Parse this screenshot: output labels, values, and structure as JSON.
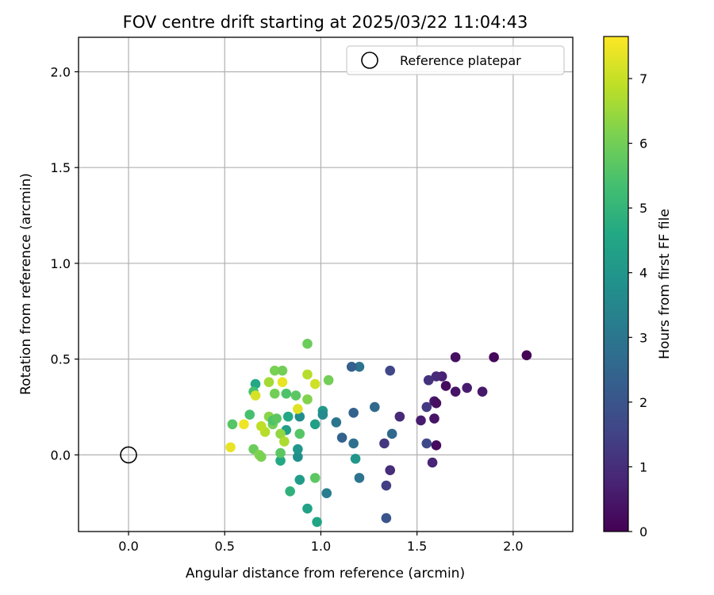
{
  "chart_data": {
    "type": "scatter",
    "title": "FOV centre drift starting at 2025/03/22 11:04:43",
    "xlabel": "Angular distance from reference (arcmin)",
    "ylabel": "Rotation from reference (arcmin)",
    "xlim": [
      -0.26,
      2.31
    ],
    "ylim": [
      -0.4,
      2.18
    ],
    "xticks": [
      0.0,
      0.5,
      1.0,
      1.5,
      2.0
    ],
    "xtick_labels": [
      "0.0",
      "0.5",
      "1.0",
      "1.5",
      "2.0"
    ],
    "yticks": [
      0.0,
      0.5,
      1.0,
      1.5,
      2.0
    ],
    "ytick_labels": [
      "0.0",
      "0.5",
      "1.0",
      "1.5",
      "2.0"
    ],
    "grid": true,
    "legend": {
      "label": "Reference platepar",
      "placement": "top-right"
    },
    "reference_point": {
      "x": 0.0,
      "y": 0.0
    },
    "colorbar": {
      "label": "Hours from first FF file",
      "colormap": "viridis",
      "range": [
        0,
        7.65
      ],
      "ticks": [
        0,
        1,
        2,
        3,
        4,
        5,
        6,
        7
      ],
      "tick_labels": [
        "0",
        "1",
        "2",
        "3",
        "4",
        "5",
        "6",
        "7"
      ]
    },
    "points": [
      {
        "x": 2.07,
        "y": 0.52,
        "c": 0.05
      },
      {
        "x": 1.9,
        "y": 0.51,
        "c": 0.15
      },
      {
        "x": 1.7,
        "y": 0.51,
        "c": 0.3
      },
      {
        "x": 1.84,
        "y": 0.33,
        "c": 0.5
      },
      {
        "x": 1.76,
        "y": 0.35,
        "c": 0.6
      },
      {
        "x": 1.7,
        "y": 0.33,
        "c": 0.4
      },
      {
        "x": 1.65,
        "y": 0.36,
        "c": 0.2
      },
      {
        "x": 1.63,
        "y": 0.41,
        "c": 0.7
      },
      {
        "x": 1.6,
        "y": 0.41,
        "c": 0.9
      },
      {
        "x": 1.56,
        "y": 0.39,
        "c": 1.1
      },
      {
        "x": 1.59,
        "y": 0.28,
        "c": 0.5
      },
      {
        "x": 1.6,
        "y": 0.27,
        "c": 0.3
      },
      {
        "x": 1.55,
        "y": 0.25,
        "c": 1.3
      },
      {
        "x": 1.52,
        "y": 0.18,
        "c": 0.6
      },
      {
        "x": 1.59,
        "y": 0.19,
        "c": 0.4
      },
      {
        "x": 1.55,
        "y": 0.06,
        "c": 1.7
      },
      {
        "x": 1.6,
        "y": 0.05,
        "c": 0.2
      },
      {
        "x": 1.58,
        "y": -0.04,
        "c": 0.8
      },
      {
        "x": 1.41,
        "y": 0.2,
        "c": 0.9
      },
      {
        "x": 1.36,
        "y": -0.08,
        "c": 1.0
      },
      {
        "x": 1.34,
        "y": -0.16,
        "c": 1.4
      },
      {
        "x": 1.33,
        "y": 0.06,
        "c": 1.2
      },
      {
        "x": 1.36,
        "y": 0.44,
        "c": 1.6
      },
      {
        "x": 1.37,
        "y": 0.11,
        "c": 2.6
      },
      {
        "x": 1.34,
        "y": -0.33,
        "c": 2.0
      },
      {
        "x": 1.28,
        "y": 0.25,
        "c": 2.6
      },
      {
        "x": 1.2,
        "y": 0.46,
        "c": 2.9
      },
      {
        "x": 1.16,
        "y": 0.46,
        "c": 2.3
      },
      {
        "x": 1.17,
        "y": 0.22,
        "c": 2.4
      },
      {
        "x": 1.17,
        "y": 0.06,
        "c": 2.8
      },
      {
        "x": 1.11,
        "y": 0.09,
        "c": 2.4
      },
      {
        "x": 1.2,
        "y": -0.12,
        "c": 2.9
      },
      {
        "x": 1.18,
        "y": -0.02,
        "c": 4.0
      },
      {
        "x": 1.08,
        "y": 0.17,
        "c": 3.0
      },
      {
        "x": 1.03,
        "y": -0.2,
        "c": 3.2
      },
      {
        "x": 1.01,
        "y": 0.23,
        "c": 4.1
      },
      {
        "x": 1.01,
        "y": 0.21,
        "c": 3.6
      },
      {
        "x": 0.97,
        "y": 0.16,
        "c": 4.3
      },
      {
        "x": 0.89,
        "y": 0.2,
        "c": 3.7
      },
      {
        "x": 0.89,
        "y": -0.13,
        "c": 4.2
      },
      {
        "x": 0.88,
        "y": -0.01,
        "c": 3.8
      },
      {
        "x": 0.88,
        "y": 0.03,
        "c": 4.0
      },
      {
        "x": 0.93,
        "y": -0.28,
        "c": 4.4
      },
      {
        "x": 0.98,
        "y": -0.35,
        "c": 4.5
      },
      {
        "x": 0.84,
        "y": -0.19,
        "c": 4.9
      },
      {
        "x": 0.83,
        "y": 0.2,
        "c": 4.6
      },
      {
        "x": 0.82,
        "y": 0.13,
        "c": 4.3
      },
      {
        "x": 0.79,
        "y": -0.03,
        "c": 4.6
      },
      {
        "x": 0.79,
        "y": 0.01,
        "c": 5.7
      },
      {
        "x": 0.97,
        "y": -0.12,
        "c": 5.7
      },
      {
        "x": 0.89,
        "y": 0.11,
        "c": 5.6
      },
      {
        "x": 0.93,
        "y": 0.58,
        "c": 5.9
      },
      {
        "x": 1.04,
        "y": 0.39,
        "c": 6.0
      },
      {
        "x": 0.93,
        "y": 0.29,
        "c": 6.2
      },
      {
        "x": 0.87,
        "y": 0.31,
        "c": 5.7
      },
      {
        "x": 0.82,
        "y": 0.32,
        "c": 5.5
      },
      {
        "x": 0.76,
        "y": 0.32,
        "c": 6.0
      },
      {
        "x": 0.76,
        "y": 0.44,
        "c": 6.1
      },
      {
        "x": 0.8,
        "y": 0.44,
        "c": 6.0
      },
      {
        "x": 0.66,
        "y": 0.37,
        "c": 4.6
      },
      {
        "x": 0.65,
        "y": 0.33,
        "c": 5.4
      },
      {
        "x": 0.63,
        "y": 0.21,
        "c": 5.4
      },
      {
        "x": 0.54,
        "y": 0.16,
        "c": 5.6
      },
      {
        "x": 0.65,
        "y": 0.03,
        "c": 5.9
      },
      {
        "x": 0.68,
        "y": 0.0,
        "c": 6.2
      },
      {
        "x": 0.69,
        "y": -0.01,
        "c": 6.1
      },
      {
        "x": 0.73,
        "y": 0.2,
        "c": 6.3
      },
      {
        "x": 0.75,
        "y": 0.16,
        "c": 6.0
      },
      {
        "x": 0.75,
        "y": 0.18,
        "c": 5.5
      },
      {
        "x": 0.77,
        "y": 0.19,
        "c": 5.7
      },
      {
        "x": 0.79,
        "y": 0.11,
        "c": 6.4
      },
      {
        "x": 0.81,
        "y": 0.07,
        "c": 6.7
      },
      {
        "x": 0.71,
        "y": 0.12,
        "c": 6.8
      },
      {
        "x": 0.69,
        "y": 0.15,
        "c": 6.9
      },
      {
        "x": 0.73,
        "y": 0.38,
        "c": 6.6
      },
      {
        "x": 0.8,
        "y": 0.38,
        "c": 7.4
      },
      {
        "x": 0.93,
        "y": 0.42,
        "c": 6.8
      },
      {
        "x": 0.97,
        "y": 0.37,
        "c": 7.1
      },
      {
        "x": 0.88,
        "y": 0.24,
        "c": 7.3
      },
      {
        "x": 0.66,
        "y": 0.31,
        "c": 7.2
      },
      {
        "x": 0.6,
        "y": 0.16,
        "c": 7.5
      },
      {
        "x": 0.53,
        "y": 0.04,
        "c": 7.4
      }
    ]
  }
}
